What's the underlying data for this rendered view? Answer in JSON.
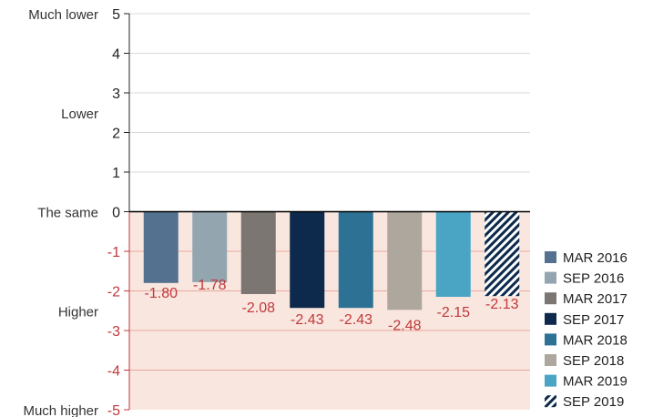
{
  "chart_data": {
    "type": "bar",
    "title": "",
    "xlabel": "",
    "ylabel": "",
    "ylim": [
      -5,
      5
    ],
    "y_ticks": [
      5,
      4,
      3,
      2,
      1,
      0,
      -1,
      -2,
      -3,
      -4,
      -5
    ],
    "y_tick_labels": [
      "5",
      "4",
      "3",
      "2",
      "1",
      "0",
      "-1",
      "-2",
      "-3",
      "-4",
      "-5"
    ],
    "y_category_labels": [
      {
        "label": "Much lower",
        "y": 5
      },
      {
        "label": "Lower",
        "y": 2.5
      },
      {
        "label": "The same",
        "y": 0
      },
      {
        "label": "Higher",
        "y": -2.5
      },
      {
        "label": "Much higher",
        "y": -5
      }
    ],
    "grid": true,
    "negative_region_shaded": true,
    "legend_position": "right",
    "series": [
      {
        "name": "MAR 2016",
        "value": -1.8,
        "label": "-1.80",
        "color": "#54728f",
        "pattern": "solid"
      },
      {
        "name": "SEP 2016",
        "value": -1.78,
        "label": "-1.78",
        "color": "#93a6b0",
        "pattern": "solid"
      },
      {
        "name": "MAR 2017",
        "value": -2.08,
        "label": "-2.08",
        "color": "#7b7671",
        "pattern": "solid"
      },
      {
        "name": "SEP 2017",
        "value": -2.43,
        "label": "-2.43",
        "color": "#0d2a4c",
        "pattern": "solid"
      },
      {
        "name": "MAR 2018",
        "value": -2.43,
        "label": "-2.43",
        "color": "#2d7294",
        "pattern": "solid"
      },
      {
        "name": "SEP 2018",
        "value": -2.48,
        "label": "-2.48",
        "color": "#aea79d",
        "pattern": "solid"
      },
      {
        "name": "MAR 2019",
        "value": -2.15,
        "label": "-2.15",
        "color": "#4aa5c5",
        "pattern": "solid"
      },
      {
        "name": "SEP 2019",
        "value": -2.13,
        "label": "-2.13",
        "color": "#0d2a4c",
        "pattern": "hatch"
      }
    ],
    "colors": {
      "positive_tick": "#222222",
      "negative_tick": "#c0393b",
      "shading": "#f9e6df",
      "negative_grid": "#e8a99f",
      "positive_grid": "#d9d9d9",
      "zero_line": "#000000"
    }
  }
}
